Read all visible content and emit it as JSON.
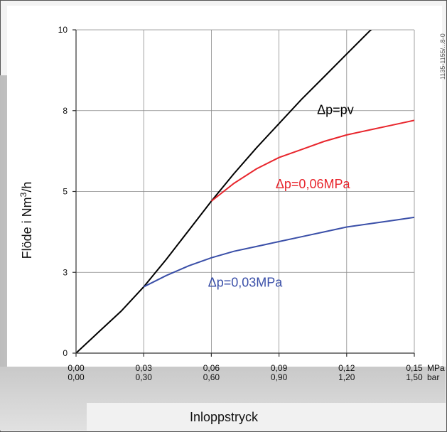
{
  "chart_data": {
    "type": "line",
    "xlabel": "Inloppstryck",
    "ylabel_main": "Flöde i Nm",
    "ylabel_sup": "3",
    "ylabel_tail": "/h",
    "xlim": [
      0,
      0.15
    ],
    "ylim": [
      0,
      10
    ],
    "grid": true,
    "x_ticks": [
      0,
      0.03,
      0.06,
      0.09,
      0.12,
      0.15
    ],
    "x_tick_labels_mpa": [
      "0,00",
      "0,03",
      "0,06",
      "0,09",
      "0,12",
      "0,15"
    ],
    "x_tick_labels_bar": [
      "0,00",
      "0,30",
      "0,60",
      "0,90",
      "1,20",
      "1,50"
    ],
    "x_unit_mpa": "MPa",
    "x_unit_bar": "bar",
    "y_ticks": [
      0,
      2.5,
      5,
      7.5,
      10
    ],
    "y_tick_labels": [
      "0",
      "3",
      "5",
      "8",
      "10"
    ],
    "series": [
      {
        "name": "Δp=pv",
        "color": "#000000",
        "x": [
          0,
          0.01,
          0.02,
          0.03,
          0.04,
          0.05,
          0.06,
          0.07,
          0.08,
          0.09,
          0.1,
          0.11,
          0.12,
          0.13,
          0.14,
          0.15
        ],
        "y": [
          0,
          0.65,
          1.3,
          2.05,
          2.9,
          3.8,
          4.7,
          5.55,
          6.35,
          7.1,
          7.85,
          8.55,
          9.25,
          9.95,
          10.6,
          11.3
        ]
      },
      {
        "name": "Δp=0,06MPa",
        "color": "#e8262d",
        "x": [
          0.06,
          0.07,
          0.08,
          0.09,
          0.1,
          0.11,
          0.12,
          0.13,
          0.14,
          0.15
        ],
        "y": [
          4.7,
          5.25,
          5.7,
          6.05,
          6.3,
          6.55,
          6.75,
          6.9,
          7.05,
          7.2
        ]
      },
      {
        "name": "Δp=0,03MPa",
        "color": "#3a4fa8",
        "x": [
          0.03,
          0.04,
          0.05,
          0.06,
          0.07,
          0.08,
          0.09,
          0.1,
          0.11,
          0.12,
          0.13,
          0.14,
          0.15
        ],
        "y": [
          2.05,
          2.4,
          2.7,
          2.95,
          3.15,
          3.3,
          3.45,
          3.6,
          3.75,
          3.9,
          4.0,
          4.1,
          4.2
        ]
      }
    ],
    "side_code": "1135-1155/...8-0"
  }
}
